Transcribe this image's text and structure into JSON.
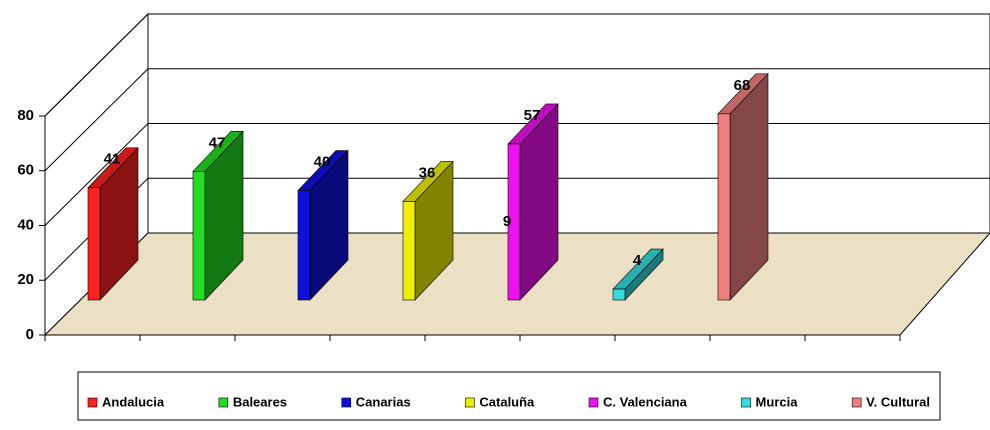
{
  "chart_data": {
    "type": "bar3d",
    "series": [
      {
        "name": "Andalucia",
        "color": "#ff2020",
        "values": [
          41
        ]
      },
      {
        "name": "Baleares",
        "color": "#22dd22",
        "values": [
          47
        ]
      },
      {
        "name": "Canarias",
        "color": "#1010dd",
        "values": [
          40
        ]
      },
      {
        "name": "Cataluña",
        "color": "#eeee00",
        "values": [
          36
        ]
      },
      {
        "name": "C. Valenciana",
        "color": "#ee10ee",
        "values": [
          57
        ]
      },
      {
        "name": "Murcia",
        "color": "#33dddd",
        "values": [
          4
        ]
      },
      {
        "name": "V. Cultural",
        "color": "#f08080",
        "values": [
          68
        ]
      }
    ],
    "annotation": "9",
    "ylim": [
      0,
      80
    ],
    "yticks": [
      0,
      20,
      40,
      60,
      80
    ],
    "grid": true,
    "legend": "bottom"
  }
}
